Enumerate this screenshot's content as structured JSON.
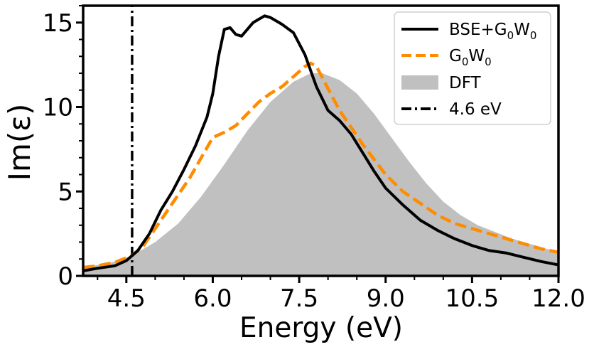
{
  "chart_data": {
    "type": "line",
    "xlabel": "Energy (eV)",
    "ylabel": "Im(ε)",
    "xlim": [
      3.75,
      12.0
    ],
    "ylim": [
      0,
      16
    ],
    "x_ticks": [
      "4.5",
      "6.0",
      "7.5",
      "9.0",
      "10.5",
      "12.0"
    ],
    "x_tick_values": [
      4.5,
      6.0,
      7.5,
      9.0,
      10.5,
      12.0
    ],
    "y_ticks": [
      "0",
      "5",
      "10",
      "15"
    ],
    "y_tick_values": [
      0,
      5,
      10,
      15
    ],
    "legend_position": "top-right",
    "grid": false,
    "series": [
      {
        "name": "BSE+G0W0",
        "legend_base": "BSE+G",
        "legend_sub1": "0",
        "legend_mid": "W",
        "legend_sub2": "0",
        "style": "solid",
        "color": "#000000",
        "x": [
          3.75,
          4.0,
          4.3,
          4.5,
          4.7,
          4.9,
          5.1,
          5.3,
          5.5,
          5.7,
          5.9,
          6.0,
          6.1,
          6.2,
          6.3,
          6.4,
          6.5,
          6.6,
          6.7,
          6.8,
          6.9,
          7.0,
          7.1,
          7.2,
          7.4,
          7.6,
          7.8,
          8.0,
          8.2,
          8.4,
          8.6,
          8.8,
          9.0,
          9.3,
          9.6,
          9.9,
          10.2,
          10.5,
          10.8,
          11.1,
          11.4,
          11.7,
          12.0
        ],
        "y": [
          0.3,
          0.45,
          0.6,
          0.9,
          1.5,
          2.5,
          3.9,
          5.0,
          6.3,
          7.7,
          9.4,
          10.8,
          13.0,
          14.6,
          14.7,
          14.3,
          14.2,
          14.6,
          15.0,
          15.2,
          15.4,
          15.3,
          15.1,
          14.9,
          14.4,
          13.1,
          11.2,
          9.8,
          9.2,
          8.4,
          7.3,
          6.2,
          5.2,
          4.2,
          3.3,
          2.7,
          2.2,
          1.8,
          1.5,
          1.35,
          1.1,
          0.85,
          0.65
        ]
      },
      {
        "name": "G0W0",
        "legend_base": "G",
        "legend_sub1": "0",
        "legend_mid": "W",
        "legend_sub2": "0",
        "style": "dashed",
        "color": "#ff8c00",
        "x": [
          3.75,
          4.0,
          4.3,
          4.6,
          4.8,
          5.0,
          5.2,
          5.4,
          5.6,
          5.8,
          6.0,
          6.2,
          6.4,
          6.6,
          6.8,
          7.0,
          7.2,
          7.4,
          7.6,
          7.7,
          7.8,
          8.0,
          8.2,
          8.4,
          8.6,
          8.8,
          9.0,
          9.3,
          9.6,
          9.9,
          10.2,
          10.5,
          10.8,
          11.1,
          11.4,
          11.7,
          12.0
        ],
        "y": [
          0.5,
          0.6,
          0.8,
          1.2,
          1.8,
          2.8,
          3.8,
          4.8,
          5.8,
          7.0,
          8.2,
          8.5,
          8.9,
          9.6,
          10.3,
          10.8,
          11.2,
          11.8,
          12.4,
          12.6,
          12.4,
          11.1,
          9.8,
          8.8,
          7.8,
          6.9,
          6.0,
          5.0,
          4.3,
          3.6,
          3.1,
          2.8,
          2.5,
          2.2,
          1.9,
          1.6,
          1.4
        ]
      },
      {
        "name": "DFT",
        "style": "area",
        "color": "#c0c0c0",
        "x": [
          3.75,
          4.0,
          4.3,
          4.6,
          5.0,
          5.4,
          5.8,
          6.2,
          6.6,
          7.0,
          7.4,
          7.7,
          7.9,
          8.2,
          8.5,
          8.8,
          9.1,
          9.4,
          9.7,
          10.0,
          10.3,
          10.6,
          10.9,
          11.2,
          11.5,
          11.8,
          12.0
        ],
        "y": [
          0.5,
          0.65,
          0.85,
          1.2,
          2.0,
          3.1,
          4.7,
          6.6,
          8.6,
          10.3,
          11.5,
          12.0,
          12.0,
          11.6,
          10.8,
          9.6,
          8.2,
          6.8,
          5.5,
          4.4,
          3.6,
          3.0,
          2.6,
          2.2,
          1.9,
          1.6,
          1.45
        ]
      },
      {
        "name": "4.6 eV",
        "style": "dashdot-vline",
        "color": "#000000",
        "x": [
          4.6,
          4.6
        ],
        "y": [
          0,
          16
        ]
      }
    ]
  }
}
